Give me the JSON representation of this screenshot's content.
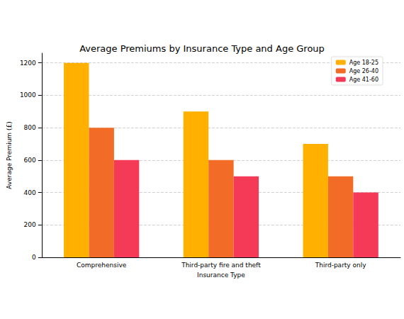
{
  "chart_data": {
    "type": "bar",
    "title": "Average Premiums by Insurance Type and Age Group",
    "x_label": "Insurance Type",
    "y_label": "Average Premium (£)",
    "categories": [
      "Comprehensive",
      "Third-party fire and theft",
      "Third-party only"
    ],
    "series": [
      {
        "name": "Age 18-25",
        "color": "#ffb000",
        "values": [
          1200,
          900,
          700
        ]
      },
      {
        "name": "Age 26-40",
        "color": "#f26b27",
        "values": [
          800,
          600,
          500
        ]
      },
      {
        "name": "Age 41-60",
        "color": "#f43a56",
        "values": [
          600,
          500,
          400
        ]
      }
    ],
    "ylim": [
      0,
      1260
    ],
    "yticks": [
      0,
      200,
      400,
      600,
      800,
      1000,
      1200
    ],
    "grid": true,
    "legend": "upper right"
  }
}
